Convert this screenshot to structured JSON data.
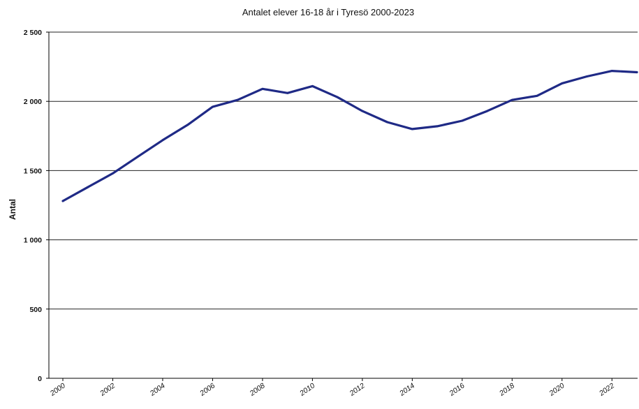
{
  "chart_data": {
    "type": "line",
    "title": "Antalet elever 16-18 år i Tyresö 2000-2023",
    "xlabel": "",
    "ylabel": "Antal",
    "ylim": [
      0,
      2500
    ],
    "xlim": [
      2000,
      2023
    ],
    "y_ticks": [
      0,
      500,
      1000,
      1500,
      2000,
      2500
    ],
    "y_tick_labels": [
      "0",
      "500",
      "1 000",
      "1 500",
      "2 000",
      "2 500"
    ],
    "x_ticks": [
      2000,
      2002,
      2004,
      2006,
      2008,
      2010,
      2012,
      2014,
      2016,
      2018,
      2020,
      2022
    ],
    "x_tick_labels": [
      "2000",
      "2002",
      "2004",
      "2006",
      "2008",
      "2010",
      "2012",
      "2014",
      "2016",
      "2018",
      "2020",
      "2022"
    ],
    "grid": "horizontal",
    "legend": "none",
    "series": [
      {
        "color": "#1f2a86",
        "x": [
          2000,
          2001,
          2002,
          2003,
          2004,
          2005,
          2006,
          2007,
          2008,
          2009,
          2010,
          2011,
          2012,
          2013,
          2014,
          2015,
          2016,
          2017,
          2018,
          2019,
          2020,
          2021,
          2022,
          2023
        ],
        "values": [
          1280,
          1380,
          1480,
          1600,
          1720,
          1830,
          1960,
          2010,
          2090,
          2060,
          2110,
          2030,
          1930,
          1850,
          1800,
          1820,
          1860,
          1930,
          2010,
          2040,
          2130,
          2180,
          2220,
          2210
        ]
      }
    ]
  }
}
